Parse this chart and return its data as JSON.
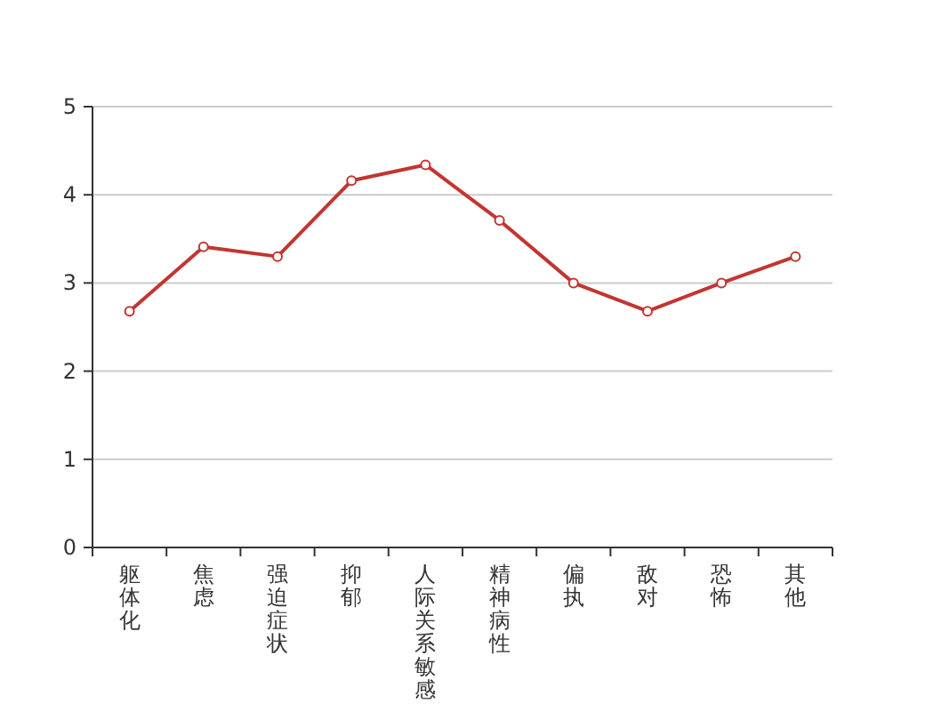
{
  "chart_data": {
    "type": "line",
    "categories": [
      "躯体化",
      "焦虑",
      "强迫症状",
      "抑郁",
      "人际关系敏感",
      "精神病性",
      "偏执",
      "敌对",
      "恐怖",
      "其他"
    ],
    "series": [
      {
        "color": "#c23531",
        "values": [
          2.68,
          3.41,
          3.3,
          4.16,
          4.34,
          3.71,
          3.0,
          2.68,
          3.0,
          3.3
        ]
      }
    ],
    "ylim": [
      0,
      5
    ],
    "yticks": [
      0,
      1,
      2,
      3,
      4,
      5
    ],
    "grid": "y",
    "marker": "circle",
    "line_style": "solid"
  }
}
